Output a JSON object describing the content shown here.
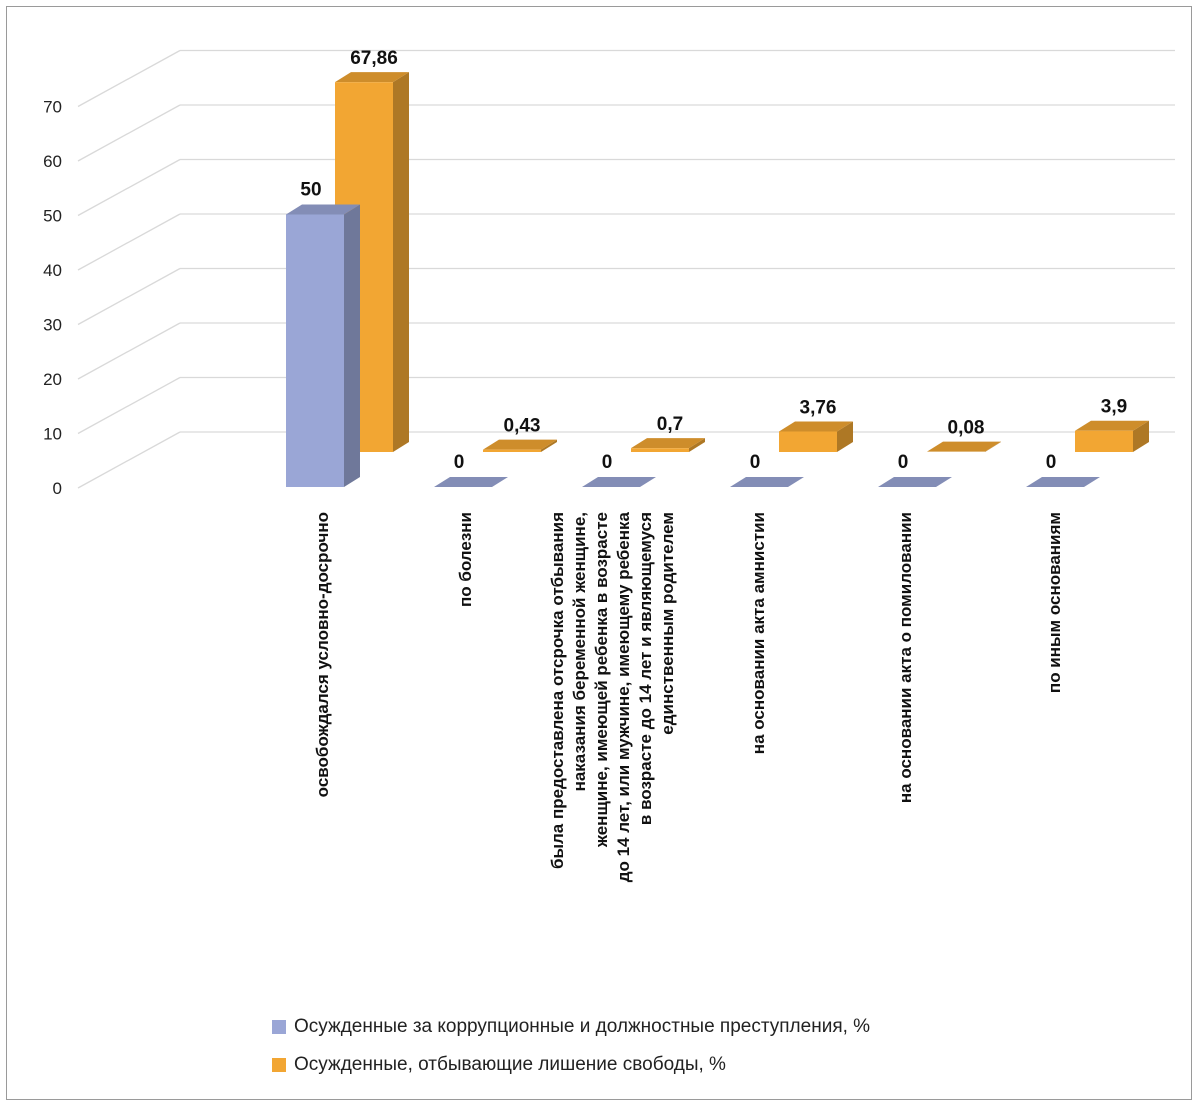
{
  "chart_data": {
    "type": "bar",
    "categories": [
      [
        "освобождался условно-досрочно"
      ],
      [
        "по болезни"
      ],
      [
        "была предоставлена отсрочка отбывания",
        "наказания беременной женщине,",
        "женщине, имеющей ребенка в возрасте",
        "до 14 лет, или мужчине, имеющему ребенка",
        "в возрасте до 14 лет и являющемуся",
        "единственным родителем"
      ],
      [
        "на основании акта амнистии"
      ],
      [
        "на основании акта о помиловании"
      ],
      [
        "по иным основаниям"
      ]
    ],
    "series": [
      {
        "name": "Осужденные за коррупционные и должностные преступления, %",
        "values": [
          50,
          0,
          0,
          0,
          0,
          0
        ],
        "labels": [
          "50",
          "0",
          "0",
          "0",
          "0",
          "0"
        ],
        "color": "#9aa6d6"
      },
      {
        "name": "Осужденные, отбывающие лишение свободы, %",
        "values": [
          67.86,
          0.43,
          0.7,
          3.76,
          0.08,
          3.9
        ],
        "labels": [
          "67,86",
          "0,43",
          "0,7",
          "3,76",
          "0,08",
          "3,9"
        ],
        "color": "#f2a633"
      }
    ],
    "yticks": [
      "0",
      "10",
      "20",
      "30",
      "40",
      "50",
      "60",
      "70"
    ],
    "ylim": [
      0,
      70
    ],
    "grid": true,
    "legend": "bottom",
    "style": "3d-clustered-column"
  }
}
